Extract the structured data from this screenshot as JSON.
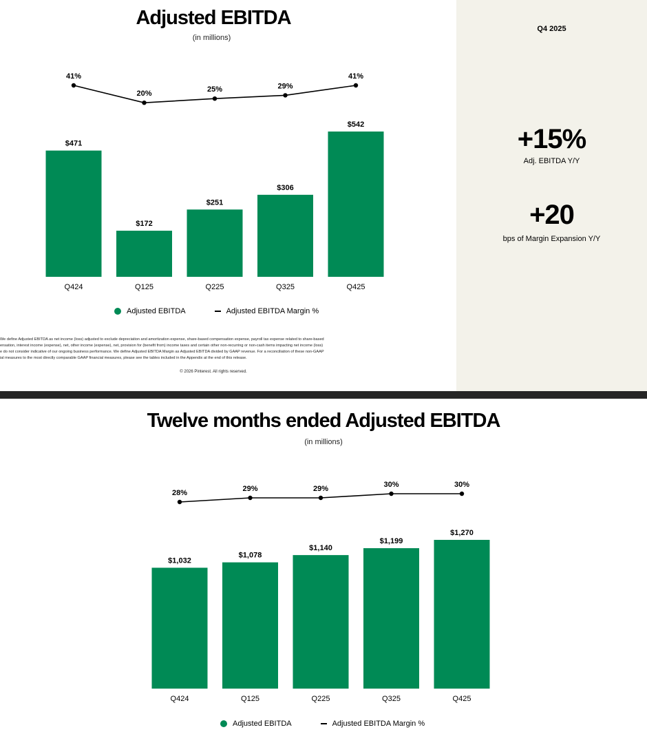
{
  "colors": {
    "bar": "#008A55",
    "line": "#000000",
    "panel": "#F3F2EA",
    "divider": "#262626"
  },
  "slide1": {
    "title": "Adjusted EBITDA",
    "subtitle": "(in millions)",
    "panel": {
      "period": "Q4 2025",
      "stat1_value": "+15%",
      "stat1_label": "Adj. EBITDA Y/Y",
      "stat2_value": "+20",
      "stat2_label": "bps of Margin Expansion Y/Y"
    },
    "legend": {
      "bar_label": "Adjusted EBITDA",
      "line_label": "Adjusted EBITDA Margin %"
    },
    "footnote_lines": [
      "We define Adjusted EBITDA as net income (loss) adjusted to exclude depreciation and amortization expense, share-based compensation expense, payroll tax expense related to share-based",
      "ensation, interest income (expense), net, other income (expense), net, provision for (benefit from) income taxes and certain other non-recurring or non-cash items impacting net income (loss)",
      "e do not consider indicative of our ongoing business performance. We define Adjusted EBITDA Margin as Adjusted EBITDA divided by GAAP revenue. For a reconciliation of these non-GAAP",
      "ial measures to the most directly comparable GAAP financial measures, please see the tables included in the Appendix at the end of this release."
    ],
    "copyright": "© 2026 Pinterest. All rights reserved."
  },
  "slide2": {
    "title": "Twelve months ended Adjusted EBITDA",
    "subtitle": "(in millions)",
    "legend": {
      "bar_label": "Adjusted EBITDA",
      "line_label": "Adjusted EBITDA Margin %"
    }
  },
  "chart_data": [
    {
      "type": "bar",
      "title": "Adjusted EBITDA",
      "subtitle": "(in millions)",
      "categories": [
        "Q424",
        "Q125",
        "Q225",
        "Q325",
        "Q425"
      ],
      "series": [
        {
          "name": "Adjusted EBITDA",
          "type": "bar",
          "values": [
            471,
            172,
            251,
            306,
            542
          ],
          "labels": [
            "$471",
            "$172",
            "$251",
            "$306",
            "$542"
          ]
        },
        {
          "name": "Adjusted EBITDA Margin %",
          "type": "line",
          "values": [
            41,
            20,
            25,
            29,
            41
          ],
          "labels": [
            "41%",
            "20%",
            "25%",
            "29%",
            "41%"
          ]
        }
      ],
      "legend": "bottom"
    },
    {
      "type": "bar",
      "title": "Twelve months ended Adjusted EBITDA",
      "subtitle": "(in millions)",
      "categories": [
        "Q424",
        "Q125",
        "Q225",
        "Q325",
        "Q425"
      ],
      "series": [
        {
          "name": "Adjusted EBITDA",
          "type": "bar",
          "values": [
            1032,
            1078,
            1140,
            1199,
            1270
          ],
          "labels": [
            "$1,032",
            "$1,078",
            "$1,140",
            "$1,199",
            "$1,270"
          ]
        },
        {
          "name": "Adjusted EBITDA Margin %",
          "type": "line",
          "values": [
            28,
            29,
            29,
            30,
            30
          ],
          "labels": [
            "28%",
            "29%",
            "29%",
            "30%",
            "30%"
          ]
        }
      ],
      "legend": "bottom"
    }
  ]
}
